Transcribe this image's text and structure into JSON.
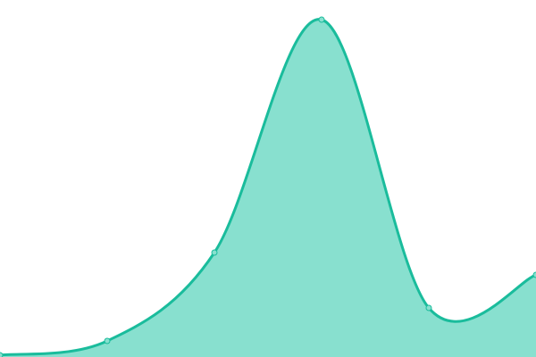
{
  "chart_data": {
    "type": "area",
    "title": "",
    "xlabel": "",
    "ylabel": "",
    "x": [
      0,
      1,
      2,
      3,
      4,
      5
    ],
    "series": [
      {
        "values": [
          2,
          18,
          117,
          378,
          55,
          92
        ]
      }
    ],
    "xlim": [
      0,
      5
    ],
    "ylim": [
      0,
      400
    ],
    "grid": false,
    "axes_visible": false,
    "smooth": true,
    "colors": {
      "line": "#1abc9c",
      "fill": "#88e0cf",
      "point_fill": "#88e0cf"
    }
  }
}
